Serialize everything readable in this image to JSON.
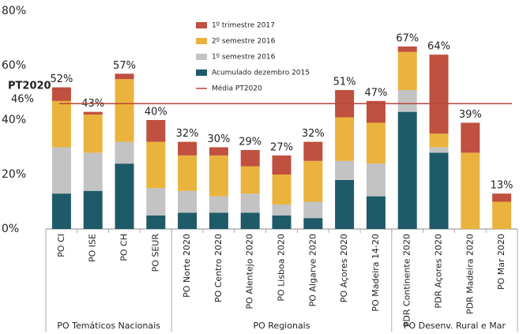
{
  "chart_data": {
    "type": "stacked_bar",
    "categories": [
      "PO CI",
      "PO ISE",
      "PO CH",
      "PO SEUR",
      "PO Norte 2020",
      "PO Centro 2020",
      "PO Alentejo 2020",
      "PO Lisboa 2020",
      "PO Algarve 2020",
      "PO Açores 2020",
      "PO Madeira 14-20",
      "PDR Continente 2020",
      "PDR Açores 2020",
      "PDR Madeira 2020",
      "PO Mar 2020"
    ],
    "series": [
      {
        "name": "Acumulado dezembro 2015",
        "color": "#1f5a69",
        "values": [
          13,
          14,
          24,
          5,
          6,
          6,
          6,
          5,
          4,
          18,
          12,
          43,
          28,
          0,
          0
        ]
      },
      {
        "name": "1º semestre 2016",
        "color": "#c3c3c3",
        "values": [
          17,
          14,
          8,
          10,
          8,
          6,
          7,
          4,
          6,
          7,
          12,
          8,
          2,
          0,
          0
        ]
      },
      {
        "name": "2º semestre 2016",
        "color": "#eab33d",
        "values": [
          17,
          14,
          23,
          17,
          13,
          15,
          10,
          11,
          15,
          16,
          15,
          14,
          5,
          28,
          10
        ]
      },
      {
        "name": "1º trimestre 2017",
        "color": "#c0503f",
        "values": [
          5,
          1,
          2,
          8,
          5,
          3,
          6,
          7,
          7,
          10,
          8,
          2,
          29,
          11,
          3
        ]
      }
    ],
    "totals": [
      52,
      43,
      57,
      40,
      32,
      30,
      29,
      27,
      32,
      51,
      47,
      67,
      64,
      39,
      13
    ],
    "total_labels": [
      "52%",
      "43%",
      "57%",
      "40%",
      "32%",
      "30%",
      "29%",
      "27%",
      "32%",
      "51%",
      "47%",
      "67%",
      "64%",
      "39%",
      "13%"
    ],
    "reference_line": {
      "name": "Média PT2020",
      "title": "PT2020",
      "value": 46,
      "label": "46%",
      "color": "#b5473a"
    },
    "groups": [
      {
        "label": "PO Temáticos Nacionais",
        "span": 4
      },
      {
        "label": "PO Regionais",
        "span": 7
      },
      {
        "label": "PO Desenv. Rural e Mar",
        "span": 4
      }
    ],
    "ylim": [
      0,
      80
    ],
    "yticks": [
      {
        "value": 0,
        "label": "0%"
      },
      {
        "value": 20,
        "label": "20%"
      },
      {
        "value": 40,
        "label": "40%"
      },
      {
        "value": 60,
        "label": "60%"
      },
      {
        "value": 80,
        "label": "80%"
      }
    ]
  }
}
